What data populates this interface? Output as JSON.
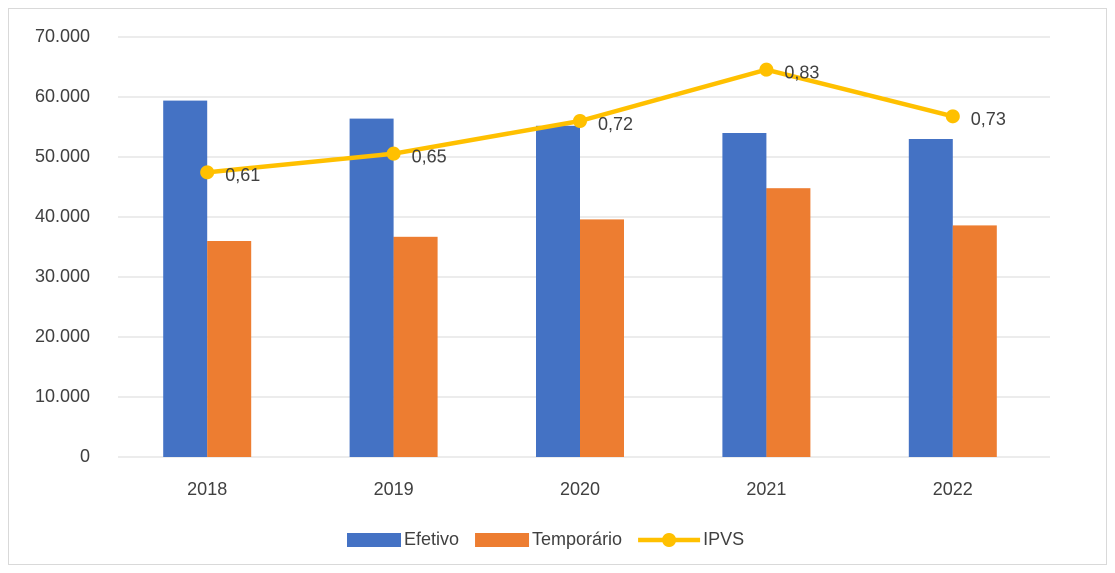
{
  "chart_data": {
    "type": "bar",
    "categories": [
      "2018",
      "2019",
      "2020",
      "2021",
      "2022"
    ],
    "series": [
      {
        "name": "Efetivo",
        "color": "#4472c4",
        "values": [
          59400,
          56400,
          55200,
          54000,
          53000
        ]
      },
      {
        "name": "Temporário",
        "color": "#ed7d31",
        "values": [
          36000,
          36700,
          39600,
          44800,
          38600
        ]
      },
      {
        "name": "IPVS",
        "color": "#ffc000",
        "type": "line",
        "axis": "y2",
        "values": [
          0.61,
          0.65,
          0.72,
          0.83,
          0.73
        ],
        "value_labels": [
          "0,61",
          "0,65",
          "0,72",
          "0,83",
          "0,73"
        ]
      }
    ],
    "ylim": [
      0,
      70000
    ],
    "yticks": [
      0,
      {
        "value": 10000,
        "label": "10.000"
      },
      {
        "value": 20000,
        "label": "20.000"
      },
      {
        "value": 30000,
        "label": "30.000"
      },
      {
        "value": 40000,
        "label": "40.000"
      },
      {
        "value": 50000,
        "label": "50.000"
      },
      {
        "value": 60000,
        "label": "60.000"
      },
      {
        "value": 70000,
        "label": "70.000"
      }
    ],
    "y2lim": [
      0,
      0.9
    ],
    "grid": true,
    "legend": "bottom"
  }
}
